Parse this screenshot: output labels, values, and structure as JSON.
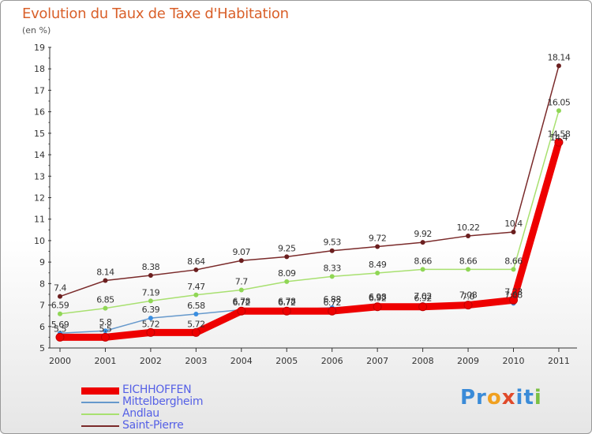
{
  "title": "Evolution du Taux de Taxe d'Habitation",
  "subtitle": "(en %)",
  "logo": {
    "parts": [
      "Pr",
      "o",
      "x",
      "i",
      "t",
      "i"
    ],
    "colors": [
      "#3a8bd8",
      "#f0a020",
      "#e04a2a",
      "#3a8bd8",
      "#3a8bd8",
      "#7ac043"
    ]
  },
  "chart_data": {
    "type": "line",
    "title": "Evolution du Taux de Taxe d'Habitation",
    "ylabel": "(en %)",
    "xlabel": "",
    "ylim": [
      5,
      19
    ],
    "yticks": [
      "5",
      "6",
      "7",
      "8",
      "9",
      "10",
      "11",
      "12",
      "13",
      "14",
      "15",
      "16",
      "17",
      "18",
      "19"
    ],
    "categories": [
      "2000",
      "2001",
      "2002",
      "2003",
      "2004",
      "2005",
      "2006",
      "2007",
      "2008",
      "2009",
      "2010",
      "2011"
    ],
    "series": [
      {
        "name": "Saint-Pierre",
        "color": "#7a2a2a",
        "marker": "#6b1f1f",
        "values": [
          7.4,
          8.14,
          8.38,
          8.64,
          9.07,
          9.25,
          9.53,
          9.72,
          9.92,
          10.22,
          10.4,
          18.14
        ],
        "labels": [
          "7.4",
          "8.14",
          "8.38",
          "8.64",
          "9.07",
          "9.25",
          "9.53",
          "9.72",
          "9.92",
          "10.22",
          "10.4",
          "18.14"
        ]
      },
      {
        "name": "Andlau",
        "color": "#a8e070",
        "marker": "#8fd655",
        "values": [
          6.59,
          6.85,
          7.19,
          7.47,
          7.7,
          8.09,
          8.33,
          8.49,
          8.66,
          8.66,
          8.66,
          16.05
        ],
        "labels": [
          "6.59",
          "6.85",
          "7.19",
          "7.47",
          "7.7",
          "8.09",
          "8.33",
          "8.49",
          "8.66",
          "8.66",
          "8.66",
          "16.05"
        ]
      },
      {
        "name": "Mittelbergheim",
        "color": "#6699cc",
        "marker": "#3a8ee0",
        "values": [
          5.69,
          5.8,
          6.39,
          6.58,
          6.78,
          6.78,
          6.88,
          6.98,
          7.02,
          7.08,
          7.08,
          14.4
        ],
        "labels": [
          "5.69",
          "5.8",
          "6.39",
          "6.58",
          "6.78",
          "6.78",
          "6.88",
          "6.98",
          "7.02",
          "7.08",
          "7.08",
          "14.4"
        ]
      },
      {
        "name": "EICHHOFFEN",
        "color": "#ee0000",
        "marker": "#ee0000",
        "values": [
          5.5,
          5.5,
          5.72,
          5.72,
          6.72,
          6.72,
          6.72,
          6.92,
          6.92,
          7.0,
          7.23,
          14.58
        ],
        "labels": [
          "5.5",
          "5.5",
          "5.72",
          "5.72",
          "6.72",
          "6.72",
          "6.72",
          "6.92",
          "6.92",
          "7.0",
          "7.23",
          "14.58"
        ]
      }
    ],
    "legend": [
      "EICHHOFFEN",
      "Mittelbergheim",
      "Andlau",
      "Saint-Pierre"
    ]
  }
}
